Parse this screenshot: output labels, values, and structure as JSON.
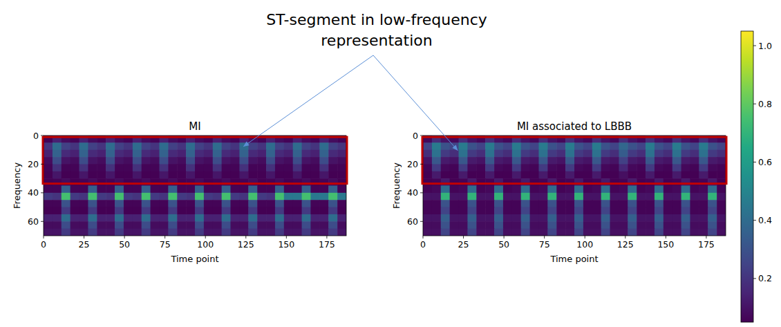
{
  "annotation": "ST-segment in low-frequency representation",
  "colorbar": {
    "range": [
      0.05,
      1.05
    ],
    "ticks": [
      0.2,
      0.4,
      0.6,
      0.8,
      {
        "value": 1,
        "label": "1.0"
      }
    ]
  },
  "chart_data": [
    {
      "type": "heatmap",
      "title": "MI",
      "x_label": "Time point",
      "y_label": "Frequency",
      "xlim": [
        0,
        187
      ],
      "ylim": [
        70,
        0
      ],
      "xticks": [
        0,
        25,
        50,
        75,
        100,
        125,
        150,
        175
      ],
      "yticks": [
        0,
        20,
        40,
        60
      ],
      "cells": [
        [
          0.06,
          0.14,
          0.08,
          0.06,
          0.14,
          0.08,
          0.06,
          0.14,
          0.08,
          0.06,
          0.14,
          0.08,
          0.06,
          0.14,
          0.08,
          0.06,
          0.14,
          0.08,
          0.06,
          0.14,
          0.08,
          0.06,
          0.14,
          0.08,
          0.06,
          0.14,
          0.08,
          0.06,
          0.14,
          0.08,
          0.06,
          0.14,
          0.08,
          0.06
        ],
        [
          0.2,
          0.4,
          0.24,
          0.2,
          0.4,
          0.24,
          0.2,
          0.4,
          0.24,
          0.2,
          0.4,
          0.24,
          0.2,
          0.4,
          0.24,
          0.2,
          0.4,
          0.24,
          0.2,
          0.4,
          0.24,
          0.2,
          0.4,
          0.24,
          0.2,
          0.4,
          0.24,
          0.2,
          0.4,
          0.24,
          0.2,
          0.4,
          0.24,
          0.2
        ],
        [
          0.14,
          0.36,
          0.17,
          0.14,
          0.36,
          0.17,
          0.14,
          0.36,
          0.17,
          0.14,
          0.36,
          0.17,
          0.14,
          0.36,
          0.17,
          0.14,
          0.36,
          0.17,
          0.14,
          0.36,
          0.17,
          0.14,
          0.36,
          0.17,
          0.14,
          0.36,
          0.17,
          0.14,
          0.36,
          0.17,
          0.14,
          0.36,
          0.17,
          0.14
        ],
        [
          0.08,
          0.28,
          0.1,
          0.08,
          0.28,
          0.1,
          0.08,
          0.28,
          0.1,
          0.08,
          0.28,
          0.1,
          0.08,
          0.28,
          0.1,
          0.08,
          0.28,
          0.1,
          0.08,
          0.28,
          0.1,
          0.08,
          0.28,
          0.1,
          0.08,
          0.28,
          0.1,
          0.08,
          0.28,
          0.1,
          0.08,
          0.28,
          0.1,
          0.08
        ],
        [
          0.06,
          0.19,
          0.06,
          0.06,
          0.19,
          0.06,
          0.06,
          0.19,
          0.06,
          0.06,
          0.19,
          0.06,
          0.06,
          0.19,
          0.06,
          0.06,
          0.19,
          0.06,
          0.06,
          0.19,
          0.06,
          0.06,
          0.19,
          0.06,
          0.06,
          0.19,
          0.06,
          0.06,
          0.19,
          0.06,
          0.06,
          0.19,
          0.06,
          0.06
        ],
        [
          0.05,
          0.11,
          0.05,
          0.05,
          0.11,
          0.05,
          0.05,
          0.11,
          0.05,
          0.05,
          0.11,
          0.05,
          0.05,
          0.11,
          0.05,
          0.05,
          0.11,
          0.05,
          0.05,
          0.11,
          0.05,
          0.05,
          0.11,
          0.05,
          0.05,
          0.11,
          0.05,
          0.05,
          0.11,
          0.05,
          0.05,
          0.11,
          0.05,
          0.05
        ],
        [
          0.05,
          0.06,
          0.08,
          0.05,
          0.06,
          0.08,
          0.05,
          0.06,
          0.08,
          0.05,
          0.06,
          0.08,
          0.05,
          0.06,
          0.08,
          0.05,
          0.06,
          0.08,
          0.05,
          0.06,
          0.08,
          0.05,
          0.06,
          0.08,
          0.05,
          0.06,
          0.08,
          0.05,
          0.06,
          0.08,
          0.05,
          0.06,
          0.08,
          0.05
        ],
        [
          0.06,
          0.06,
          0.35,
          0.06,
          0.06,
          0.35,
          0.06,
          0.06,
          0.35,
          0.06,
          0.06,
          0.35,
          0.06,
          0.06,
          0.35,
          0.06,
          0.06,
          0.35,
          0.06,
          0.06,
          0.35,
          0.06,
          0.06,
          0.35,
          0.06,
          0.06,
          0.35,
          0.06,
          0.06,
          0.35,
          0.06,
          0.06,
          0.35,
          0.06
        ],
        [
          0.22,
          0.2,
          0.75,
          0.22,
          0.2,
          0.75,
          0.22,
          0.2,
          0.75,
          0.22,
          0.2,
          0.75,
          0.22,
          0.2,
          0.75,
          0.22,
          0.2,
          0.75,
          0.22,
          0.2,
          0.75,
          0.22,
          0.2,
          0.75,
          0.22,
          0.2,
          0.75,
          0.45,
          0.45,
          0.75,
          0.45,
          0.45,
          0.75,
          0.45
        ],
        [
          0.06,
          0.06,
          0.3,
          0.06,
          0.06,
          0.3,
          0.06,
          0.06,
          0.3,
          0.06,
          0.06,
          0.3,
          0.06,
          0.06,
          0.3,
          0.06,
          0.06,
          0.3,
          0.06,
          0.06,
          0.3,
          0.06,
          0.06,
          0.3,
          0.06,
          0.06,
          0.3,
          0.06,
          0.06,
          0.3,
          0.06,
          0.06,
          0.3,
          0.06
        ],
        [
          0.05,
          0.05,
          0.22,
          0.05,
          0.05,
          0.22,
          0.05,
          0.05,
          0.22,
          0.05,
          0.05,
          0.22,
          0.05,
          0.05,
          0.22,
          0.05,
          0.05,
          0.22,
          0.05,
          0.05,
          0.22,
          0.05,
          0.05,
          0.22,
          0.05,
          0.05,
          0.22,
          0.05,
          0.05,
          0.22,
          0.05,
          0.05,
          0.22,
          0.05
        ],
        [
          0.14,
          0.14,
          0.4,
          0.14,
          0.14,
          0.4,
          0.14,
          0.14,
          0.4,
          0.14,
          0.14,
          0.4,
          0.14,
          0.14,
          0.4,
          0.14,
          0.14,
          0.4,
          0.14,
          0.14,
          0.4,
          0.14,
          0.14,
          0.4,
          0.14,
          0.14,
          0.4,
          0.14,
          0.14,
          0.4,
          0.14,
          0.14,
          0.4,
          0.14
        ],
        [
          0.08,
          0.08,
          0.28,
          0.08,
          0.08,
          0.28,
          0.08,
          0.08,
          0.28,
          0.08,
          0.08,
          0.28,
          0.08,
          0.08,
          0.28,
          0.08,
          0.08,
          0.28,
          0.08,
          0.08,
          0.28,
          0.08,
          0.08,
          0.28,
          0.08,
          0.08,
          0.28,
          0.08,
          0.08,
          0.28,
          0.08,
          0.08,
          0.28,
          0.08
        ],
        [
          0.1,
          0.1,
          0.22,
          0.1,
          0.1,
          0.22,
          0.1,
          0.1,
          0.22,
          0.1,
          0.1,
          0.22,
          0.1,
          0.1,
          0.22,
          0.1,
          0.1,
          0.22,
          0.1,
          0.1,
          0.22,
          0.1,
          0.1,
          0.22,
          0.1,
          0.1,
          0.22,
          0.1,
          0.1,
          0.22,
          0.1,
          0.1,
          0.22,
          0.1
        ]
      ]
    },
    {
      "type": "heatmap",
      "title": "MI associated to LBBB",
      "x_label": "Time point",
      "y_label": "Frequency",
      "xlim": [
        0,
        187
      ],
      "ylim": [
        70,
        0
      ],
      "xticks": [
        0,
        25,
        50,
        75,
        100,
        125,
        150,
        175
      ],
      "yticks": [
        0,
        20,
        40,
        60
      ],
      "cells": [
        [
          0.07,
          0.18,
          0.1,
          0.07,
          0.18,
          0.1,
          0.07,
          0.18,
          0.1,
          0.07,
          0.18,
          0.1,
          0.07,
          0.18,
          0.1,
          0.07,
          0.18,
          0.1,
          0.07,
          0.18,
          0.1,
          0.07,
          0.18,
          0.1,
          0.07,
          0.18,
          0.1,
          0.07,
          0.18,
          0.1,
          0.07,
          0.18,
          0.1,
          0.07
        ],
        [
          0.25,
          0.46,
          0.3,
          0.25,
          0.46,
          0.3,
          0.25,
          0.46,
          0.3,
          0.25,
          0.46,
          0.3,
          0.25,
          0.46,
          0.3,
          0.25,
          0.46,
          0.3,
          0.25,
          0.46,
          0.3,
          0.25,
          0.38,
          0.3,
          0.25,
          0.46,
          0.3,
          0.25,
          0.46,
          0.3,
          0.25,
          0.46,
          0.3,
          0.25
        ],
        [
          0.18,
          0.42,
          0.22,
          0.18,
          0.42,
          0.22,
          0.18,
          0.42,
          0.22,
          0.18,
          0.42,
          0.22,
          0.18,
          0.42,
          0.22,
          0.18,
          0.42,
          0.22,
          0.18,
          0.42,
          0.22,
          0.18,
          0.34,
          0.22,
          0.18,
          0.42,
          0.22,
          0.18,
          0.42,
          0.22,
          0.18,
          0.42,
          0.22,
          0.18
        ],
        [
          0.1,
          0.32,
          0.12,
          0.1,
          0.32,
          0.12,
          0.1,
          0.32,
          0.12,
          0.1,
          0.32,
          0.12,
          0.1,
          0.32,
          0.12,
          0.1,
          0.32,
          0.12,
          0.1,
          0.32,
          0.12,
          0.1,
          0.24,
          0.12,
          0.1,
          0.32,
          0.12,
          0.1,
          0.32,
          0.12,
          0.1,
          0.32,
          0.12,
          0.1
        ],
        [
          0.06,
          0.22,
          0.07,
          0.06,
          0.22,
          0.07,
          0.06,
          0.22,
          0.07,
          0.06,
          0.22,
          0.07,
          0.06,
          0.22,
          0.07,
          0.06,
          0.22,
          0.07,
          0.06,
          0.22,
          0.07,
          0.06,
          0.16,
          0.07,
          0.06,
          0.22,
          0.07,
          0.06,
          0.22,
          0.07,
          0.06,
          0.22,
          0.07,
          0.06
        ],
        [
          0.05,
          0.12,
          0.05,
          0.05,
          0.12,
          0.05,
          0.05,
          0.12,
          0.05,
          0.05,
          0.12,
          0.05,
          0.05,
          0.12,
          0.05,
          0.05,
          0.12,
          0.05,
          0.05,
          0.12,
          0.05,
          0.05,
          0.09,
          0.05,
          0.05,
          0.12,
          0.05,
          0.05,
          0.12,
          0.05,
          0.05,
          0.12,
          0.05,
          0.05
        ],
        [
          0.05,
          0.06,
          0.12,
          0.05,
          0.06,
          0.12,
          0.05,
          0.06,
          0.12,
          0.05,
          0.06,
          0.12,
          0.05,
          0.06,
          0.12,
          0.05,
          0.06,
          0.12,
          0.05,
          0.06,
          0.12,
          0.05,
          0.06,
          0.12,
          0.05,
          0.06,
          0.12,
          0.05,
          0.06,
          0.12,
          0.05,
          0.06,
          0.12,
          0.05
        ],
        [
          0.06,
          0.07,
          0.4,
          0.06,
          0.07,
          0.4,
          0.06,
          0.07,
          0.4,
          0.06,
          0.07,
          0.4,
          0.06,
          0.07,
          0.4,
          0.06,
          0.07,
          0.4,
          0.06,
          0.07,
          0.4,
          0.06,
          0.07,
          0.4,
          0.06,
          0.07,
          0.4,
          0.06,
          0.07,
          0.4,
          0.06,
          0.07,
          0.4,
          0.06
        ],
        [
          0.1,
          0.1,
          0.7,
          0.1,
          0.1,
          0.7,
          0.1,
          0.1,
          0.7,
          0.1,
          0.1,
          0.7,
          0.1,
          0.1,
          0.7,
          0.1,
          0.1,
          0.7,
          0.1,
          0.1,
          0.7,
          0.1,
          0.1,
          0.7,
          0.1,
          0.1,
          0.7,
          0.1,
          0.1,
          0.7,
          0.1,
          0.1,
          0.7,
          0.1
        ],
        [
          0.06,
          0.06,
          0.3,
          0.06,
          0.06,
          0.3,
          0.06,
          0.06,
          0.3,
          0.06,
          0.06,
          0.3,
          0.06,
          0.06,
          0.3,
          0.06,
          0.06,
          0.3,
          0.06,
          0.06,
          0.3,
          0.06,
          0.06,
          0.3,
          0.06,
          0.06,
          0.3,
          0.06,
          0.06,
          0.3,
          0.06,
          0.06,
          0.3,
          0.06
        ],
        [
          0.06,
          0.06,
          0.25,
          0.06,
          0.06,
          0.25,
          0.06,
          0.06,
          0.25,
          0.06,
          0.06,
          0.25,
          0.06,
          0.06,
          0.25,
          0.06,
          0.06,
          0.25,
          0.06,
          0.06,
          0.25,
          0.06,
          0.06,
          0.25,
          0.06,
          0.06,
          0.25,
          0.06,
          0.06,
          0.25,
          0.06,
          0.06,
          0.25,
          0.06
        ],
        [
          0.1,
          0.1,
          0.35,
          0.1,
          0.1,
          0.35,
          0.1,
          0.1,
          0.35,
          0.1,
          0.1,
          0.35,
          0.1,
          0.1,
          0.35,
          0.1,
          0.1,
          0.35,
          0.1,
          0.1,
          0.35,
          0.1,
          0.1,
          0.35,
          0.1,
          0.1,
          0.35,
          0.1,
          0.1,
          0.35,
          0.1,
          0.1,
          0.35,
          0.1
        ],
        [
          0.08,
          0.08,
          0.3,
          0.08,
          0.08,
          0.3,
          0.08,
          0.08,
          0.3,
          0.08,
          0.08,
          0.3,
          0.08,
          0.08,
          0.3,
          0.08,
          0.08,
          0.3,
          0.08,
          0.08,
          0.3,
          0.08,
          0.08,
          0.3,
          0.08,
          0.08,
          0.3,
          0.08,
          0.08,
          0.3,
          0.08,
          0.08,
          0.3,
          0.08
        ],
        [
          0.09,
          0.09,
          0.25,
          0.09,
          0.09,
          0.25,
          0.09,
          0.09,
          0.25,
          0.09,
          0.09,
          0.25,
          0.09,
          0.09,
          0.25,
          0.09,
          0.09,
          0.25,
          0.09,
          0.09,
          0.25,
          0.09,
          0.09,
          0.25,
          0.09,
          0.09,
          0.25,
          0.09,
          0.09,
          0.25,
          0.09,
          0.09,
          0.25,
          0.09
        ]
      ]
    }
  ]
}
